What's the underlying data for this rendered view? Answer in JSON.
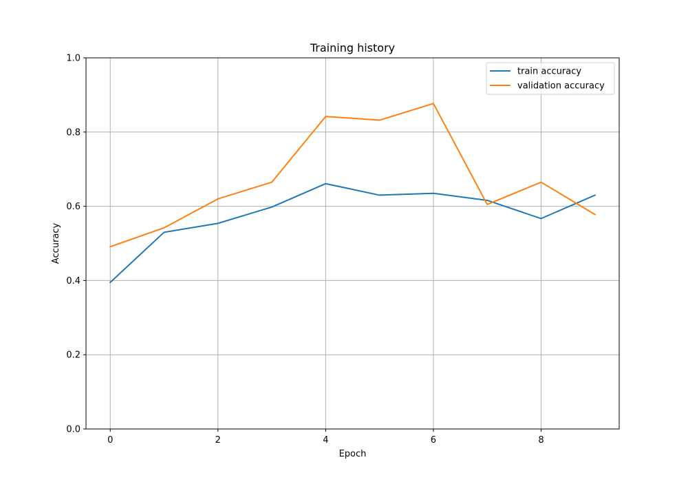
{
  "chart_data": {
    "type": "line",
    "title": "Training history",
    "xlabel": "Epoch",
    "ylabel": "Accuracy",
    "x": [
      0,
      1,
      2,
      3,
      4,
      5,
      6,
      7,
      8,
      9
    ],
    "xlim": [
      -0.45,
      9.45
    ],
    "ylim": [
      0.0,
      1.0
    ],
    "xticks": [
      0,
      2,
      4,
      6,
      8
    ],
    "yticks": [
      0.0,
      0.2,
      0.4,
      0.6,
      0.8,
      1.0
    ],
    "xtick_labels": [
      "0",
      "2",
      "4",
      "6",
      "8"
    ],
    "ytick_labels": [
      "0.0",
      "0.2",
      "0.4",
      "0.6",
      "0.8",
      "1.0"
    ],
    "grid": true,
    "legend_position": "top-right",
    "series": [
      {
        "name": "train accuracy",
        "color": "#1f77b4",
        "values": [
          0.395,
          0.53,
          0.554,
          0.598,
          0.661,
          0.63,
          0.635,
          0.616,
          0.567,
          0.63
        ]
      },
      {
        "name": "validation accuracy",
        "color": "#ff7f0e",
        "values": [
          0.491,
          0.542,
          0.62,
          0.665,
          0.842,
          0.832,
          0.877,
          0.605,
          0.665,
          0.578
        ]
      }
    ]
  }
}
